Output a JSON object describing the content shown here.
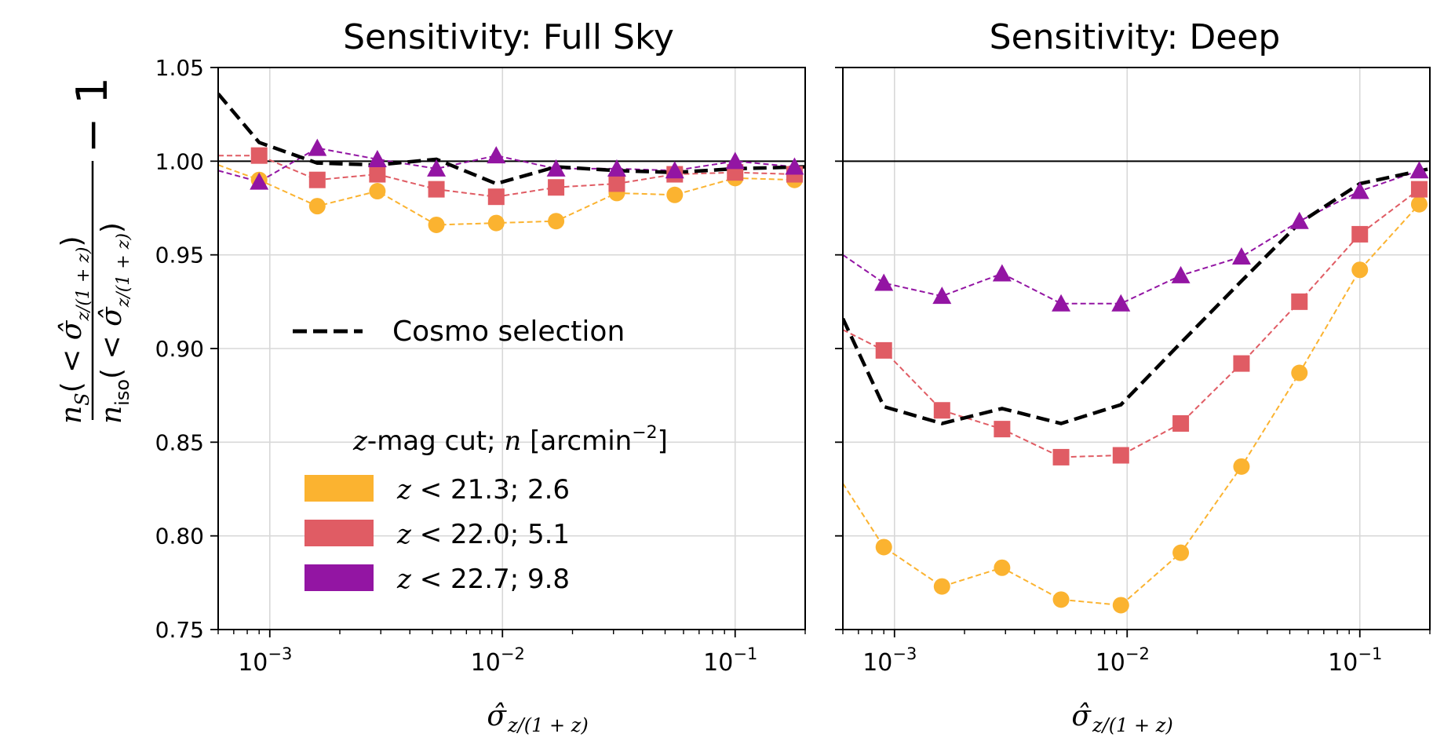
{
  "chart_data": [
    {
      "type": "line",
      "title": "Sensitivity: Full Sky",
      "xscale": "log",
      "xlim": [
        0.0006,
        0.2
      ],
      "ylim": [
        0.75,
        1.05
      ],
      "yticks": [
        0.75,
        0.8,
        0.85,
        0.9,
        0.95,
        1.0,
        1.05
      ],
      "ytick_labels": [
        "0.75",
        "0.80",
        "0.85",
        "0.90",
        "0.95",
        "1.00",
        "1.05"
      ],
      "xtick_values": [
        0.001,
        0.01,
        0.1
      ],
      "grid": true,
      "reference_line": 1.0,
      "x": [
        0.0009,
        0.0016,
        0.0029,
        0.0052,
        0.0094,
        0.017,
        0.031,
        0.055,
        0.1,
        0.18
      ],
      "series": [
        {
          "name": "z < 21.3; 2.6",
          "color": "#fbb330",
          "marker": "circle",
          "start": 0.998,
          "values": [
            0.99,
            0.976,
            0.984,
            0.966,
            0.967,
            0.968,
            0.983,
            0.982,
            0.991,
            0.99
          ]
        },
        {
          "name": "z < 22.0; 5.1",
          "color": "#e05c64",
          "marker": "square",
          "start": 1.003,
          "values": [
            1.003,
            0.99,
            0.993,
            0.985,
            0.981,
            0.986,
            0.988,
            0.993,
            0.994,
            0.993
          ]
        },
        {
          "name": "z < 22.7; 9.8",
          "color": "#9315a3",
          "marker": "triangle",
          "start": 0.995,
          "values": [
            0.989,
            1.007,
            1.001,
            0.996,
            1.003,
            0.996,
            0.996,
            0.995,
            1.0,
            0.997
          ]
        }
      ],
      "cosmo_selection": {
        "x": [
          0.0006,
          0.0009,
          0.0016,
          0.0029,
          0.0052,
          0.0094,
          0.017,
          0.031,
          0.055,
          0.1,
          0.2
        ],
        "values": [
          1.036,
          1.01,
          0.999,
          0.998,
          1.001,
          0.988,
          0.997,
          0.995,
          0.994,
          0.996,
          0.997
        ]
      }
    },
    {
      "type": "line",
      "title": "Sensitivity: Deep",
      "xscale": "log",
      "xlim": [
        0.0006,
        0.2
      ],
      "ylim": [
        0.75,
        1.05
      ],
      "xtick_values": [
        0.001,
        0.01,
        0.1
      ],
      "grid": true,
      "reference_line": 1.0,
      "x": [
        0.0009,
        0.0016,
        0.0029,
        0.0052,
        0.0094,
        0.017,
        0.031,
        0.055,
        0.1,
        0.18
      ],
      "series": [
        {
          "name": "z < 21.3; 2.6",
          "color": "#fbb330",
          "marker": "circle",
          "start": 0.828,
          "values": [
            0.794,
            0.773,
            0.783,
            0.766,
            0.763,
            0.791,
            0.837,
            0.887,
            0.942,
            0.977
          ]
        },
        {
          "name": "z < 22.0; 5.1",
          "color": "#e05c64",
          "marker": "square",
          "start": 0.91,
          "values": [
            0.899,
            0.867,
            0.857,
            0.842,
            0.843,
            0.86,
            0.892,
            0.925,
            0.961,
            0.985
          ]
        },
        {
          "name": "z < 22.7; 9.8",
          "color": "#9315a3",
          "marker": "triangle",
          "start": 0.95,
          "values": [
            0.935,
            0.928,
            0.94,
            0.924,
            0.924,
            0.939,
            0.949,
            0.968,
            0.984,
            0.995
          ]
        }
      ],
      "cosmo_selection": {
        "x": [
          0.0006,
          0.0009,
          0.0016,
          0.0029,
          0.0052,
          0.0094,
          0.017,
          0.031,
          0.055,
          0.1,
          0.2
        ],
        "values": [
          0.916,
          0.869,
          0.86,
          0.868,
          0.86,
          0.87,
          0.903,
          0.936,
          0.967,
          0.988,
          0.996
        ]
      }
    }
  ],
  "labels": {
    "xlabel_sigma": "σ̂",
    "xlabel_sub": "z/(1 + z)",
    "xtick_base": "10",
    "xtick_exponents": [
      "−3",
      "−2",
      "−1"
    ],
    "ylabel_num": "n",
    "ylabel_num_sub": "S",
    "ylabel_den": "n",
    "ylabel_den_sub": "iso",
    "ylabel_arg_open": "( < ",
    "ylabel_arg_close": ")",
    "ylabel_minus_one": "− 1"
  },
  "legend": {
    "cosmo_label": "Cosmo selection",
    "header_z": "z",
    "header_mid": "-mag cut;  ",
    "header_n": "n",
    "header_unit": " [arcmin",
    "header_exp": "−2",
    "header_close": "]",
    "entries": [
      {
        "z": "z",
        "text": " < 21.3;  2.6",
        "color": "#fbb330"
      },
      {
        "z": "z",
        "text": " < 22.0;  5.1",
        "color": "#e05c64"
      },
      {
        "z": "z",
        "text": " < 22.7;  9.8",
        "color": "#9315a3"
      }
    ]
  }
}
